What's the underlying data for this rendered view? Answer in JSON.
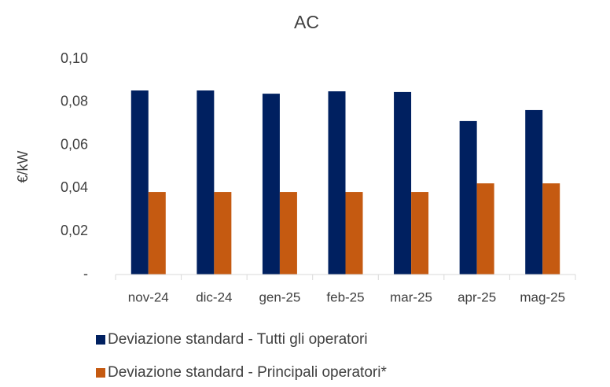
{
  "chart_data": {
    "type": "bar",
    "title": "AC",
    "y_label": "€/kW",
    "categories": [
      "nov-24",
      "dic-24",
      "gen-25",
      "feb-25",
      "mar-25",
      "apr-25",
      "mag-25"
    ],
    "series": [
      {
        "name": "Deviazione standard - Tutti gli operatori",
        "color": "#002060",
        "values": [
          0.0854,
          0.0854,
          0.0839,
          0.085,
          0.0847,
          0.0712,
          0.0763
        ]
      },
      {
        "name": "Deviazione standard - Principali operatori*",
        "color": "#c55a11",
        "values": [
          0.0383,
          0.0383,
          0.0383,
          0.0383,
          0.0383,
          0.0423,
          0.0423
        ]
      }
    ],
    "ylim": [
      0,
      0.1
    ],
    "yticks": [
      {
        "value": 0,
        "label": "-"
      },
      {
        "value": 0.02,
        "label": "0,02"
      },
      {
        "value": 0.04,
        "label": "0,04"
      },
      {
        "value": 0.06,
        "label": "0,06"
      },
      {
        "value": 0.08,
        "label": "0,08"
      },
      {
        "value": 0.1,
        "label": "0,10"
      }
    ],
    "grid": false,
    "legend": "bottom"
  }
}
